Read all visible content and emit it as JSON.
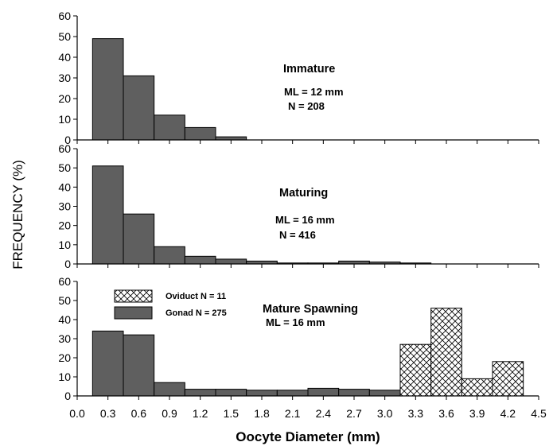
{
  "chart_data": {
    "type": "bar",
    "ylabel": "FREQUENCY (%)",
    "xlabel": "Oocyte Diameter (mm)",
    "x_ticks": [
      "0.0",
      "0.3",
      "0.6",
      "0.9",
      "1.2",
      "1.5",
      "1.8",
      "2.1",
      "2.4",
      "2.7",
      "3.0",
      "3.3",
      "3.6",
      "3.9",
      "4.2",
      "4.5"
    ],
    "y_ticks": [
      "0",
      "10",
      "20",
      "30",
      "40",
      "50",
      "60"
    ],
    "xlim": [
      0,
      4.5
    ],
    "ylim": [
      0,
      60
    ],
    "colors": {
      "gonad": "#5f5f5f",
      "oviduct_pattern": "crosshatch"
    },
    "panels": [
      {
        "title": "Immature",
        "notes": [
          "ML = 12 mm",
          "N = 208"
        ],
        "series": [
          {
            "name": "Gonad",
            "bins": [
              {
                "x0": 0.15,
                "x1": 0.45,
                "value": 49
              },
              {
                "x0": 0.45,
                "x1": 0.75,
                "value": 31
              },
              {
                "x0": 0.75,
                "x1": 1.05,
                "value": 12
              },
              {
                "x0": 1.05,
                "x1": 1.35,
                "value": 6
              },
              {
                "x0": 1.35,
                "x1": 1.65,
                "value": 1.5
              }
            ]
          }
        ]
      },
      {
        "title": "Maturing",
        "notes": [
          "ML = 16 mm",
          "N = 416"
        ],
        "series": [
          {
            "name": "Gonad",
            "bins": [
              {
                "x0": 0.15,
                "x1": 0.45,
                "value": 51
              },
              {
                "x0": 0.45,
                "x1": 0.75,
                "value": 26
              },
              {
                "x0": 0.75,
                "x1": 1.05,
                "value": 9
              },
              {
                "x0": 1.05,
                "x1": 1.35,
                "value": 4
              },
              {
                "x0": 1.35,
                "x1": 1.65,
                "value": 2.5
              },
              {
                "x0": 1.65,
                "x1": 1.95,
                "value": 1.5
              },
              {
                "x0": 1.95,
                "x1": 2.25,
                "value": 0.5
              },
              {
                "x0": 2.25,
                "x1": 2.55,
                "value": 0.5
              },
              {
                "x0": 2.55,
                "x1": 2.85,
                "value": 1.5
              },
              {
                "x0": 2.85,
                "x1": 3.15,
                "value": 1
              },
              {
                "x0": 3.15,
                "x1": 3.45,
                "value": 0.5
              }
            ]
          }
        ]
      },
      {
        "title": "Mature Spawning",
        "notes": [
          "ML = 16 mm"
        ],
        "series": [
          {
            "name": "Gonad",
            "legend": "Gonad  N = 275",
            "bins": [
              {
                "x0": 0.15,
                "x1": 0.45,
                "value": 34
              },
              {
                "x0": 0.45,
                "x1": 0.75,
                "value": 32
              },
              {
                "x0": 0.75,
                "x1": 1.05,
                "value": 7
              },
              {
                "x0": 1.05,
                "x1": 1.35,
                "value": 3.5
              },
              {
                "x0": 1.35,
                "x1": 1.65,
                "value": 3.5
              },
              {
                "x0": 1.65,
                "x1": 1.95,
                "value": 3
              },
              {
                "x0": 1.95,
                "x1": 2.25,
                "value": 3
              },
              {
                "x0": 2.25,
                "x1": 2.55,
                "value": 4
              },
              {
                "x0": 2.55,
                "x1": 2.85,
                "value": 3.5
              },
              {
                "x0": 2.85,
                "x1": 3.15,
                "value": 3
              },
              {
                "x0": 3.15,
                "x1": 3.45,
                "value": 2
              },
              {
                "x0": 3.45,
                "x1": 3.75,
                "value": 0.5
              },
              {
                "x0": 3.75,
                "x1": 4.05,
                "value": 1
              }
            ]
          },
          {
            "name": "Oviduct",
            "legend": "Oviduct  N = 11",
            "bins": [
              {
                "x0": 3.15,
                "x1": 3.45,
                "value": 27
              },
              {
                "x0": 3.45,
                "x1": 3.75,
                "value": 46
              },
              {
                "x0": 3.75,
                "x1": 4.05,
                "value": 9
              },
              {
                "x0": 4.05,
                "x1": 4.35,
                "value": 18
              }
            ]
          }
        ]
      }
    ]
  }
}
